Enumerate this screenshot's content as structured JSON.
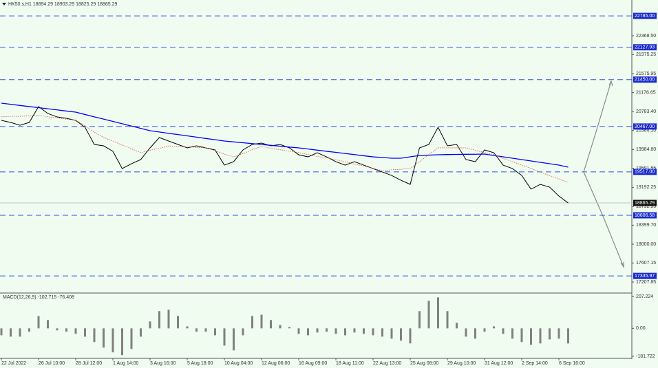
{
  "chart_data": {
    "type": "line",
    "title": "HK50.s,H1  18894.29 18903.29 18825.29 18865.29",
    "categories": [
      "22 Jul 2022",
      null,
      null,
      null,
      "26 Jul 10:00",
      null,
      null,
      null,
      "28 Jul 12:00",
      null,
      null,
      null,
      "1 Aug 14:00",
      null,
      null,
      null,
      "3 Aug 16:00",
      null,
      null,
      null,
      "5 Aug 18:00",
      null,
      null,
      null,
      "10 Aug 04:00",
      null,
      null,
      null,
      "12 Aug 06:00",
      null,
      null,
      null,
      "16 Aug 09:00",
      null,
      null,
      null,
      "18 Aug 11:00",
      null,
      null,
      null,
      "22 Aug 13:00",
      null,
      null,
      null,
      "25 Aug 08:00",
      null,
      null,
      null,
      "29 Aug 10:00",
      null,
      null,
      null,
      "31 Aug 12:00",
      null,
      null,
      null,
      "2 Sep 14:00",
      null,
      null,
      null,
      "6 Sep 16:00",
      null
    ],
    "series": [
      {
        "color": "#000000",
        "values": [
          20595,
          20552,
          20494,
          20552,
          20884,
          20740,
          20667,
          20639,
          20595,
          20451,
          20091,
          20062,
          19947,
          19586,
          19687,
          19774,
          20019,
          20235,
          20163,
          20091,
          20019,
          20062,
          20019,
          19976,
          19658,
          19730,
          19976,
          20091,
          20120,
          20062,
          20091,
          20019,
          19875,
          19831,
          19918,
          19831,
          19730,
          19658,
          19730,
          19658,
          19586,
          19514,
          19442,
          19341,
          19255,
          20019,
          20091,
          20451,
          20062,
          20091,
          19774,
          19730,
          19976,
          19918,
          19658,
          19586,
          19442,
          19154,
          19255,
          19197,
          19010,
          18865
        ]
      },
      {
        "color": "#0000ff",
        "values": [
          20956,
          20933,
          20908,
          20885,
          20862,
          20839,
          20815,
          20791,
          20768,
          20719,
          20670,
          20623,
          20574,
          20525,
          20476,
          20428,
          20379,
          20352,
          20324,
          20298,
          20271,
          20244,
          20216,
          20190,
          20163,
          20144,
          20127,
          20108,
          20091,
          20072,
          20055,
          20036,
          20019,
          19996,
          19971,
          19948,
          19925,
          19902,
          19878,
          19854,
          19831,
          19817,
          19803,
          19803,
          19831,
          19860,
          19867,
          19875,
          19879,
          19882,
          19885,
          19886,
          19889,
          19860,
          19831,
          19803,
          19774,
          19745,
          19716,
          19687,
          19658,
          19615
        ]
      },
      {
        "color": "#e05030",
        "dash": true,
        "values": [
          20670,
          20680,
          20680,
          20690,
          20700,
          20670,
          20650,
          20620,
          20600,
          20480,
          20350,
          20240,
          20160,
          20080,
          20000,
          19920,
          19970,
          20010,
          20060,
          20050,
          20040,
          20030,
          20020,
          19960,
          19890,
          19830,
          19900,
          19980,
          20050,
          20010,
          19980,
          19950,
          19920,
          19880,
          19840,
          19810,
          19770,
          19730,
          19680,
          19640,
          19590,
          19540,
          19560,
          19570,
          19590,
          19730,
          19880,
          20020,
          20020,
          20020,
          20020,
          19970,
          19920,
          19880,
          19800,
          19730,
          19660,
          19590,
          19510,
          19440,
          19370,
          19300
        ]
      }
    ],
    "ylim": [
      16992,
      23118
    ],
    "yticks": [
      {
        "value": 22368.5,
        "label": "22368.50"
      },
      {
        "value": 21975.25,
        "label": "21975.25"
      },
      {
        "value": 21575.95,
        "label": "21575.95"
      },
      {
        "value": 21176.65,
        "label": "21176.65"
      },
      {
        "value": 20783.4,
        "label": "20783.40"
      },
      {
        "value": 20384.1,
        "label": "20384.10"
      },
      {
        "value": 19984.8,
        "label": "19984.80"
      },
      {
        "value": 19591.55,
        "label": "19591.55"
      },
      {
        "value": 19192.25,
        "label": "19192.25"
      },
      {
        "value": 18792.95,
        "label": "18792.95"
      },
      {
        "value": 18399.7,
        "label": "18399.70"
      },
      {
        "value": 18000,
        "label": "18000.00"
      },
      {
        "value": 17607.15,
        "label": "17607.15"
      },
      {
        "value": 17207.85,
        "label": "17207.85"
      }
    ],
    "levels": [
      {
        "value": 22785,
        "label": "22785.00"
      },
      {
        "value": 22127.93,
        "label": "22127.93"
      },
      {
        "value": 21450,
        "label": "21450.00"
      },
      {
        "value": 20467,
        "label": "20467.00"
      },
      {
        "value": 19517,
        "label": "19517.00"
      },
      {
        "value": 18606.58,
        "label": "18606.58"
      },
      {
        "value": 17335.97,
        "label": "17335.97"
      }
    ],
    "current_price": {
      "value": 18865.29,
      "label": "18865.29"
    },
    "macd": {
      "title": "MACD(12,26,9) -102.715 -76.408",
      "color": "#808080",
      "values": [
        -45,
        -54,
        -54,
        -22,
        80,
        54,
        -13,
        -22,
        -36,
        -54,
        -89,
        -125,
        -156,
        -174,
        -134,
        -54,
        45,
        112,
        121,
        80,
        13,
        -22,
        -22,
        -45,
        -112,
        -143,
        -45,
        80,
        89,
        54,
        22,
        9,
        -36,
        -45,
        -27,
        -22,
        -36,
        -45,
        -27,
        -36,
        -45,
        -54,
        -67,
        -80,
        -98,
        112,
        179,
        201,
        112,
        36,
        -54,
        -67,
        -22,
        13,
        -36,
        -67,
        -89,
        -107,
        -98,
        -72,
        -67,
        -98
      ],
      "ylim": [
        -190.7,
        225.1
      ],
      "yticks": [
        207.224,
        {
          "value": 0,
          "label": "0.00"
        },
        -181.722
      ]
    }
  }
}
